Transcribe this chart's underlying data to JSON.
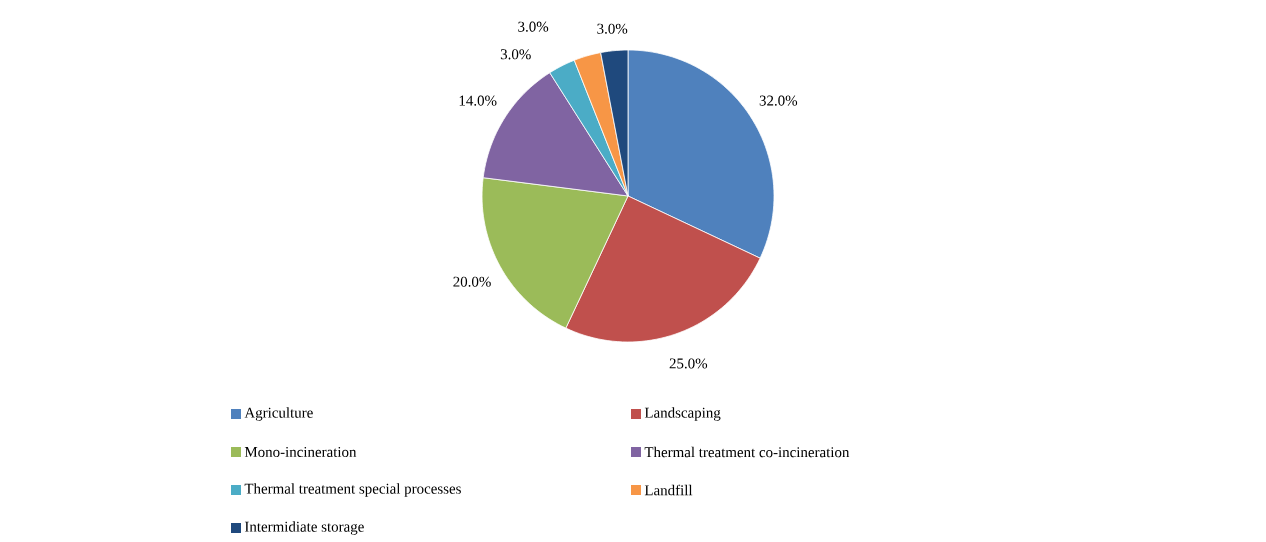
{
  "chart_data": {
    "type": "pie",
    "categories": [
      "Agriculture",
      "Landscaping",
      "Mono-incineration",
      "Thermal treatment co-incineration",
      "Thermal treatment special processes",
      "Landfill",
      "Intermidiate storage"
    ],
    "values": [
      32.0,
      25.0,
      20.0,
      14.0,
      3.0,
      3.0,
      3.0
    ],
    "value_labels": [
      "32.0%",
      "25.0%",
      "20.0%",
      "14.0%",
      "3.0%",
      "3.0%",
      "3.0%"
    ],
    "colors": [
      "#4f81bd",
      "#c0504d",
      "#9bbb59",
      "#8064a2",
      "#4bacc6",
      "#f79646",
      "#1f497d"
    ],
    "legend": "bottom"
  }
}
